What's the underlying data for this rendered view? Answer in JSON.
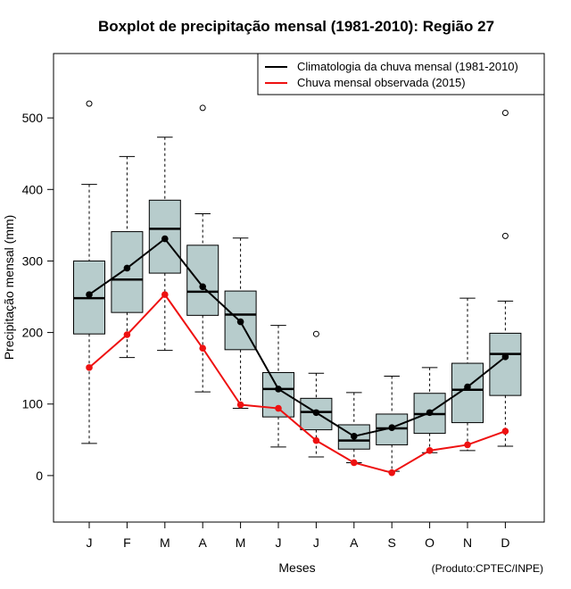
{
  "chart_data": {
    "type": "boxplot",
    "title": "Boxplot de precipitação mensal (1981-2010): Região 27",
    "xlabel": "Meses",
    "ylabel": "Precipitação mensal (mm)",
    "credit": "(Produto:CPTEC/INPE)",
    "ylim": [
      -65,
      590
    ],
    "yticks": [
      0,
      100,
      200,
      300,
      400,
      500
    ],
    "categories": [
      "J",
      "F",
      "M",
      "A",
      "M",
      "J",
      "J",
      "A",
      "S",
      "O",
      "N",
      "D"
    ],
    "boxes": [
      {
        "whisker_low": 45,
        "q1": 198,
        "median": 248,
        "q3": 300,
        "whisker_high": 407,
        "outliers": [
          520
        ]
      },
      {
        "whisker_low": 165,
        "q1": 228,
        "median": 274,
        "q3": 341,
        "whisker_high": 446,
        "outliers": []
      },
      {
        "whisker_low": 175,
        "q1": 283,
        "median": 345,
        "q3": 385,
        "whisker_high": 473,
        "outliers": []
      },
      {
        "whisker_low": 117,
        "q1": 224,
        "median": 257,
        "q3": 322,
        "whisker_high": 366,
        "outliers": [
          514
        ]
      },
      {
        "whisker_low": 94,
        "q1": 176,
        "median": 225,
        "q3": 258,
        "whisker_high": 332,
        "outliers": []
      },
      {
        "whisker_low": 40,
        "q1": 82,
        "median": 121,
        "q3": 144,
        "whisker_high": 210,
        "outliers": []
      },
      {
        "whisker_low": 26,
        "q1": 64,
        "median": 89,
        "q3": 108,
        "whisker_high": 143,
        "outliers": [
          198
        ]
      },
      {
        "whisker_low": 18,
        "q1": 37,
        "median": 49,
        "q3": 71,
        "whisker_high": 116,
        "outliers": []
      },
      {
        "whisker_low": 6,
        "q1": 43,
        "median": 66,
        "q3": 86,
        "whisker_high": 139,
        "outliers": []
      },
      {
        "whisker_low": 32,
        "q1": 59,
        "median": 86,
        "q3": 115,
        "whisker_high": 151,
        "outliers": []
      },
      {
        "whisker_low": 35,
        "q1": 74,
        "median": 120,
        "q3": 157,
        "whisker_high": 248,
        "outliers": []
      },
      {
        "whisker_low": 41,
        "q1": 112,
        "median": 170,
        "q3": 199,
        "whisker_high": 244,
        "outliers": [
          335,
          507
        ]
      }
    ],
    "series": [
      {
        "name": "Climatologia da chuva mensal (1981-2010)",
        "color": "#000000",
        "values": [
          253,
          290,
          331,
          264,
          215,
          121,
          88,
          55,
          67,
          88,
          124,
          166
        ]
      },
      {
        "name": "Chuva mensal observada (2015)",
        "color": "#ee1111",
        "values": [
          151,
          197,
          253,
          178,
          99,
          94,
          49,
          18,
          4,
          35,
          43,
          62
        ]
      }
    ],
    "box_fill": "#b7cccc",
    "legend_position": "top-right"
  }
}
